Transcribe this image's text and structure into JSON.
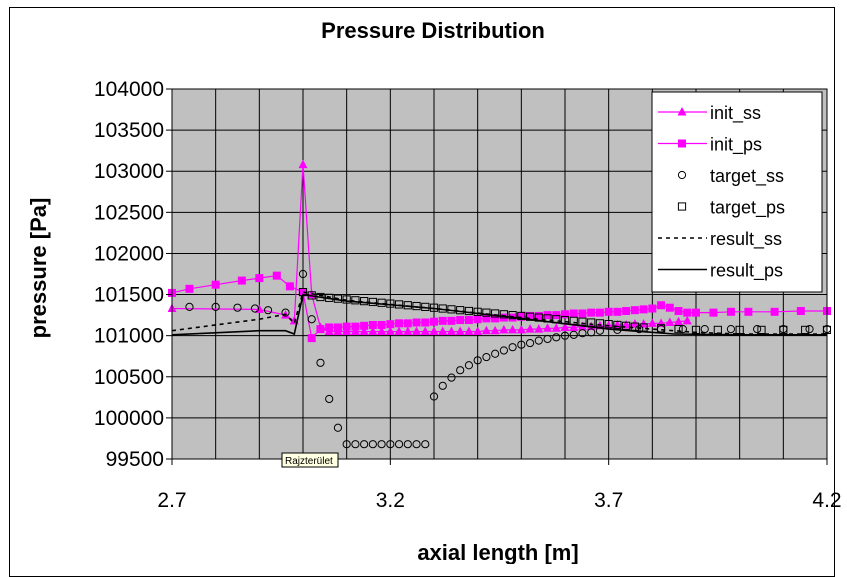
{
  "chart_data": {
    "type": "line",
    "title": "Pressure Distribution",
    "xlabel": "axial length [m]",
    "ylabel": "pressure [Pa]",
    "xlim": [
      2.7,
      4.2
    ],
    "ylim": [
      99500,
      104000
    ],
    "xticks": [
      2.7,
      3.2,
      3.7,
      4.2
    ],
    "xtick_labels": [
      "2.7",
      "3.2",
      "3.7",
      "4.2"
    ],
    "x_grid_step": 0.1,
    "yticks": [
      99500,
      100000,
      100500,
      101000,
      101500,
      102000,
      102500,
      103000,
      103500,
      104000
    ],
    "ytick_labels": [
      "99500",
      "100000",
      "100500",
      "101000",
      "101500",
      "102000",
      "102500",
      "103000",
      "103500",
      "104000"
    ],
    "grid": true,
    "legend_position": "top-right",
    "plot_background": "#c0c0c0",
    "tooltip": "Rajzterület",
    "series": [
      {
        "name": "init_ss",
        "color": "#ff00ff",
        "marker": "triangle",
        "line": "solid",
        "x": [
          2.7,
          2.9,
          2.96,
          2.98,
          3.0,
          3.02,
          3.04,
          3.06,
          3.08,
          3.1,
          3.12,
          3.14,
          3.16,
          3.18,
          3.2,
          3.22,
          3.24,
          3.26,
          3.28,
          3.3,
          3.32,
          3.34,
          3.36,
          3.38,
          3.4,
          3.42,
          3.44,
          3.46,
          3.48,
          3.5,
          3.52,
          3.54,
          3.56,
          3.58,
          3.6,
          3.62,
          3.64,
          3.66,
          3.68,
          3.7,
          3.72,
          3.74,
          3.76,
          3.78,
          3.8,
          3.82,
          3.84,
          3.86,
          3.88
        ],
        "y": [
          101330,
          101320,
          101250,
          101180,
          103080,
          101500,
          101100,
          101050,
          101050,
          101050,
          101050,
          101050,
          101050,
          101050,
          101050,
          101050,
          101050,
          101050,
          101050,
          101050,
          101050,
          101050,
          101050,
          101050,
          101050,
          101060,
          101060,
          101070,
          101070,
          101070,
          101080,
          101080,
          101090,
          101090,
          101100,
          101100,
          101110,
          101110,
          101120,
          101120,
          101130,
          101130,
          101140,
          101140,
          101150,
          101150,
          101160,
          101170,
          101180
        ]
      },
      {
        "name": "init_ps",
        "color": "#ff00ff",
        "marker": "square",
        "line": "solid",
        "x": [
          2.7,
          2.74,
          2.8,
          2.86,
          2.9,
          2.94,
          2.97,
          3.0,
          3.02,
          3.04,
          3.06,
          3.08,
          3.1,
          3.12,
          3.14,
          3.16,
          3.18,
          3.2,
          3.22,
          3.24,
          3.26,
          3.28,
          3.3,
          3.32,
          3.34,
          3.36,
          3.38,
          3.4,
          3.42,
          3.44,
          3.46,
          3.48,
          3.5,
          3.52,
          3.54,
          3.56,
          3.58,
          3.6,
          3.62,
          3.64,
          3.66,
          3.68,
          3.7,
          3.72,
          3.74,
          3.76,
          3.78,
          3.8,
          3.82,
          3.84,
          3.86,
          3.88,
          3.9,
          3.94,
          3.98,
          4.02,
          4.08,
          4.14,
          4.2
        ],
        "y": [
          101520,
          101570,
          101620,
          101670,
          101700,
          101730,
          101600,
          101530,
          100970,
          101080,
          101100,
          101100,
          101110,
          101110,
          101120,
          101130,
          101130,
          101140,
          101150,
          101150,
          101160,
          101160,
          101170,
          101180,
          101180,
          101190,
          101190,
          101200,
          101210,
          101210,
          101220,
          101220,
          101230,
          101240,
          101240,
          101250,
          101250,
          101260,
          101270,
          101270,
          101280,
          101280,
          101290,
          101290,
          101300,
          101310,
          101320,
          101330,
          101370,
          101340,
          101300,
          101280,
          101280,
          101280,
          101290,
          101290,
          101290,
          101300,
          101300
        ]
      },
      {
        "name": "target_ss",
        "color": "#000000",
        "marker": "circle",
        "line": "none",
        "x": [
          2.74,
          2.8,
          2.85,
          2.89,
          2.92,
          2.96,
          3.0,
          3.02,
          3.04,
          3.06,
          3.08,
          3.1,
          3.12,
          3.14,
          3.16,
          3.18,
          3.2,
          3.22,
          3.24,
          3.26,
          3.28,
          3.3,
          3.32,
          3.34,
          3.36,
          3.38,
          3.4,
          3.42,
          3.44,
          3.46,
          3.48,
          3.5,
          3.52,
          3.54,
          3.56,
          3.58,
          3.6,
          3.62,
          3.64,
          3.66,
          3.68,
          3.72,
          3.77,
          3.82,
          3.87,
          3.92,
          3.98,
          4.04,
          4.1,
          4.16,
          4.2
        ],
        "y": [
          101350,
          101350,
          101340,
          101330,
          101310,
          101280,
          101750,
          101200,
          100670,
          100230,
          99880,
          99680,
          99680,
          99680,
          99680,
          99680,
          99680,
          99680,
          99680,
          99680,
          99680,
          100260,
          100390,
          100490,
          100580,
          100640,
          100700,
          100740,
          100780,
          100820,
          100860,
          100890,
          100910,
          100940,
          100960,
          100980,
          101000,
          101010,
          101030,
          101040,
          101060,
          101070,
          101080,
          101080,
          101080,
          101080,
          101080,
          101080,
          101080,
          101080,
          101080
        ]
      },
      {
        "name": "target_ps",
        "color": "#000000",
        "marker": "square-open",
        "line": "none",
        "x": [
          3.0,
          3.02,
          3.04,
          3.06,
          3.08,
          3.1,
          3.12,
          3.14,
          3.16,
          3.18,
          3.2,
          3.22,
          3.24,
          3.26,
          3.28,
          3.3,
          3.32,
          3.34,
          3.36,
          3.38,
          3.4,
          3.42,
          3.44,
          3.46,
          3.48,
          3.5,
          3.52,
          3.54,
          3.56,
          3.58,
          3.6,
          3.62,
          3.64,
          3.66,
          3.68,
          3.7,
          3.72,
          3.74,
          3.76,
          3.78,
          3.82,
          3.86,
          3.9,
          3.95,
          4.0,
          4.05,
          4.1,
          4.15,
          4.2
        ],
        "y": [
          101530,
          101490,
          101470,
          101460,
          101450,
          101440,
          101430,
          101420,
          101410,
          101400,
          101390,
          101380,
          101370,
          101360,
          101350,
          101340,
          101330,
          101320,
          101310,
          101300,
          101290,
          101280,
          101270,
          101260,
          101250,
          101240,
          101230,
          101220,
          101210,
          101200,
          101190,
          101180,
          101170,
          101160,
          101150,
          101140,
          101130,
          101120,
          101110,
          101100,
          101090,
          101080,
          101070,
          101070,
          101070,
          101070,
          101070,
          101070,
          101070
        ]
      },
      {
        "name": "result_ss",
        "color": "#000000",
        "marker": "none",
        "line": "dashed",
        "x": [
          2.7,
          2.9,
          2.96,
          2.98,
          3.0,
          3.1,
          3.3,
          3.5,
          3.7,
          3.9,
          4.0,
          4.2
        ],
        "y": [
          101060,
          101200,
          101260,
          101150,
          101530,
          101430,
          101330,
          101220,
          101120,
          101040,
          101020,
          101020
        ]
      },
      {
        "name": "result_ps",
        "color": "#000000",
        "marker": "none",
        "line": "solid",
        "x": [
          2.7,
          2.9,
          2.96,
          2.98,
          3.0,
          3.1,
          3.3,
          3.5,
          3.7,
          3.85,
          4.0,
          4.2
        ],
        "y": [
          101010,
          101060,
          101060,
          101020,
          101500,
          101420,
          101330,
          101210,
          101080,
          101020,
          101010,
          101010
        ]
      }
    ]
  }
}
